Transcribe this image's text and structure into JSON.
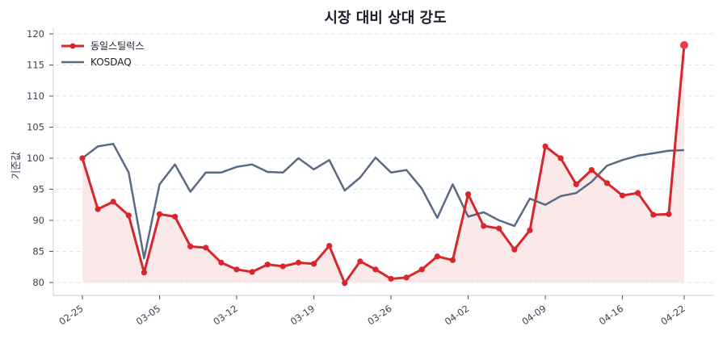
{
  "chart_data": {
    "type": "line",
    "title": "시장 대비 상대 강도",
    "xlabel": "",
    "ylabel": "기준값",
    "ylim": [
      78,
      121
    ],
    "yticks": [
      80,
      85,
      90,
      95,
      100,
      105,
      110,
      115,
      120
    ],
    "grid": true,
    "legend_position": "upper left",
    "x": [
      "02-25",
      "02-26",
      "02-27",
      "02-28",
      "03-04",
      "03-05",
      "03-06",
      "03-07",
      "03-10",
      "03-11",
      "03-12",
      "03-13",
      "03-14",
      "03-17",
      "03-18",
      "03-19",
      "03-20",
      "03-21",
      "03-24",
      "03-25",
      "03-26",
      "03-27",
      "03-28",
      "03-31",
      "04-01",
      "04-02",
      "04-03",
      "04-04",
      "04-07",
      "04-08",
      "04-09",
      "04-10",
      "04-11",
      "04-14",
      "04-15",
      "04-16",
      "04-17",
      "04-18",
      "04-21",
      "04-22"
    ],
    "xtick_labels": [
      "02-25",
      "03-05",
      "03-12",
      "03-19",
      "03-26",
      "04-02",
      "04-09",
      "04-16",
      "04-22"
    ],
    "xtick_indices": [
      0,
      5,
      10,
      15,
      20,
      25,
      30,
      35,
      39
    ],
    "series": [
      {
        "name": "동일스틸럭스",
        "color": "#d9262c",
        "fill": "#fbe6e6",
        "markers": true,
        "values": [
          100.0,
          91.8,
          93.0,
          90.8,
          81.6,
          91.0,
          90.6,
          85.8,
          85.6,
          83.2,
          82.1,
          81.7,
          82.9,
          82.6,
          83.2,
          83.0,
          85.9,
          79.9,
          83.4,
          82.1,
          80.6,
          80.8,
          82.1,
          84.2,
          83.6,
          94.2,
          89.1,
          88.7,
          85.3,
          88.4,
          101.9,
          100.0,
          95.8,
          98.1,
          96.0,
          94.0,
          94.4,
          90.9,
          91.0,
          118.2
        ]
      },
      {
        "name": "KOSDAQ",
        "color": "#5a6a85",
        "markers": false,
        "values": [
          100.0,
          101.9,
          102.3,
          97.7,
          83.9,
          95.8,
          99.0,
          94.6,
          97.7,
          97.7,
          98.6,
          99.0,
          97.8,
          97.7,
          100.0,
          98.2,
          99.7,
          94.8,
          96.9,
          100.1,
          97.7,
          98.1,
          95.1,
          90.4,
          95.8,
          90.6,
          91.3,
          90.0,
          89.1,
          93.5,
          92.5,
          93.9,
          94.4,
          96.2,
          98.8,
          99.7,
          100.4,
          100.8,
          101.2,
          101.3
        ]
      }
    ]
  }
}
